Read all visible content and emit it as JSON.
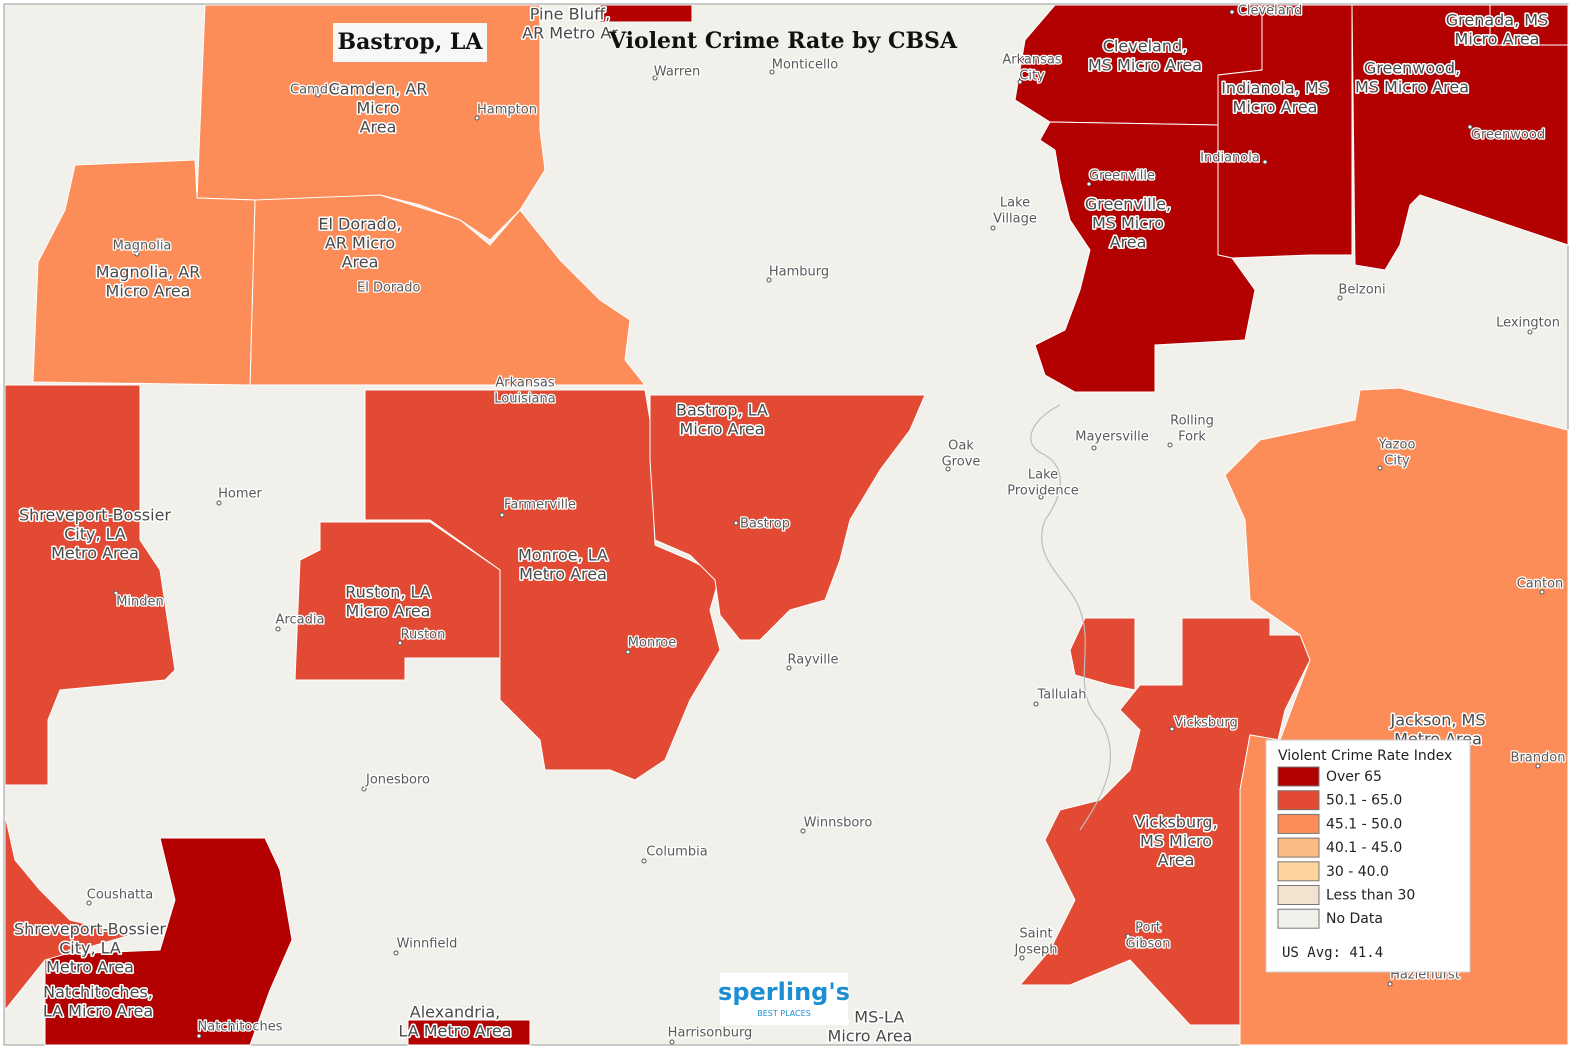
{
  "title": "Violent Crime Rate by CBSA",
  "location_label": "Bastrop, LA",
  "legend": {
    "title": "Violent Crime Rate Index",
    "items": [
      {
        "label": "Over 65",
        "color": "#b30000"
      },
      {
        "label": "50.1 - 65.0",
        "color": "#e34a33"
      },
      {
        "label": "45.1 - 50.0",
        "color": "#fc8d59"
      },
      {
        "label": "40.1 - 45.0",
        "color": "#fdbb84"
      },
      {
        "label": "30 - 40.0",
        "color": "#fdd49e"
      },
      {
        "label": "Less than 30",
        "color": "#f1e3cf"
      },
      {
        "label": "No Data",
        "color": "#f2f0eb"
      }
    ],
    "us_avg": "US Avg: 41.4"
  },
  "regions": [
    {
      "lines": [
        "Camden, AR",
        "Micro",
        "Area"
      ],
      "color": "#fc8d59"
    },
    {
      "lines": [
        "El Dorado,",
        "AR Micro",
        "Area"
      ],
      "color": "#fc8d59"
    },
    {
      "lines": [
        "Magnolia, AR",
        "Micro Area"
      ],
      "color": "#fc8d59"
    },
    {
      "lines": [
        "Shreveport-Bossier",
        "City, LA",
        "Metro Area"
      ],
      "color": "#e34a33"
    },
    {
      "lines": [
        "Monroe, LA",
        "Metro Area"
      ],
      "color": "#e34a33"
    },
    {
      "lines": [
        "Ruston, LA",
        "Micro Area"
      ],
      "color": "#e34a33"
    },
    {
      "lines": [
        "Bastrop, LA",
        "Micro Area"
      ],
      "color": "#e34a33"
    },
    {
      "lines": [
        "Cleveland,",
        "MS Micro Area"
      ],
      "color": "#b30000"
    },
    {
      "lines": [
        "Indianola, MS",
        "Micro Area"
      ],
      "color": "#b30000"
    },
    {
      "lines": [
        "Greenwood,",
        "MS Micro Area"
      ],
      "color": "#b30000"
    },
    {
      "lines": [
        "Grenada, MS",
        "Micro Area"
      ],
      "color": "#b30000"
    },
    {
      "lines": [
        "Greenville,",
        "MS Micro",
        "Area"
      ],
      "color": "#b30000"
    },
    {
      "lines": [
        "Pine Bluff,",
        "AR Metro Ar"
      ],
      "color": "#b30000"
    },
    {
      "lines": [
        "Vicksburg,",
        "MS Micro",
        "Area"
      ],
      "color": "#e34a33"
    },
    {
      "lines": [
        "Jackson, MS",
        "Metro Area"
      ],
      "color": "#fc8d59"
    },
    {
      "lines": [
        "Natchitoches,",
        "LA Micro Area"
      ],
      "color": "#b30000"
    },
    {
      "lines": [
        "Shreveport-Bossier",
        "City, LA",
        "Metro Area"
      ],
      "color": "#e34a33"
    },
    {
      "lines": [
        "Alexandria,",
        "LA Metro Area"
      ],
      "color": "#b30000"
    },
    {
      "lines": [
        "z, MS-LA",
        "Micro Area"
      ],
      "color": "#f2f0eb"
    }
  ],
  "cities": [
    {
      "lines": [
        "Camden"
      ]
    },
    {
      "lines": [
        "Warren"
      ]
    },
    {
      "lines": [
        "Monticello"
      ]
    },
    {
      "lines": [
        "Cleveland"
      ]
    },
    {
      "lines": [
        "Arkansas",
        "City"
      ]
    },
    {
      "lines": [
        "Hampton"
      ]
    },
    {
      "lines": [
        "Greenwood"
      ]
    },
    {
      "lines": [
        "Indianola"
      ]
    },
    {
      "lines": [
        "Greenville"
      ]
    },
    {
      "lines": [
        "Lake",
        "Village"
      ]
    },
    {
      "lines": [
        "Magnolia"
      ]
    },
    {
      "lines": [
        "Hamburg"
      ]
    },
    {
      "lines": [
        "El Dorado"
      ]
    },
    {
      "lines": [
        "Belzoni"
      ]
    },
    {
      "lines": [
        "Lexington"
      ]
    },
    {
      "lines": [
        "Arkansas",
        "Louisiana"
      ]
    },
    {
      "lines": [
        "Rolling",
        "Fork"
      ]
    },
    {
      "lines": [
        "Oak",
        "Grove"
      ]
    },
    {
      "lines": [
        "Mayersville"
      ]
    },
    {
      "lines": [
        "Yazoo",
        "City"
      ]
    },
    {
      "lines": [
        "Homer"
      ]
    },
    {
      "lines": [
        "Lake",
        "Providence"
      ]
    },
    {
      "lines": [
        "Farmerville"
      ]
    },
    {
      "lines": [
        "Bastrop"
      ]
    },
    {
      "lines": [
        "Minden"
      ]
    },
    {
      "lines": [
        "Canton"
      ]
    },
    {
      "lines": [
        "Arcadia"
      ]
    },
    {
      "lines": [
        "Ruston"
      ]
    },
    {
      "lines": [
        "Monroe"
      ]
    },
    {
      "lines": [
        "Rayville"
      ]
    },
    {
      "lines": [
        "Tallulah"
      ]
    },
    {
      "lines": [
        "Vicksburg"
      ]
    },
    {
      "lines": [
        "Brandon"
      ]
    },
    {
      "lines": [
        "Jonesboro"
      ]
    },
    {
      "lines": [
        "Winnsboro"
      ]
    },
    {
      "lines": [
        "Columbia"
      ]
    },
    {
      "lines": [
        "Coushatta"
      ]
    },
    {
      "lines": [
        "Port",
        "Gibson"
      ]
    },
    {
      "lines": [
        "Saint",
        "Joseph"
      ]
    },
    {
      "lines": [
        "Winnfield"
      ]
    },
    {
      "lines": [
        "Hazlehurst"
      ]
    },
    {
      "lines": [
        "Natchitoches"
      ]
    },
    {
      "lines": [
        "Harrisonburg"
      ]
    }
  ],
  "logo": {
    "text": "sperling's",
    "subtext": "BEST PLACES"
  }
}
